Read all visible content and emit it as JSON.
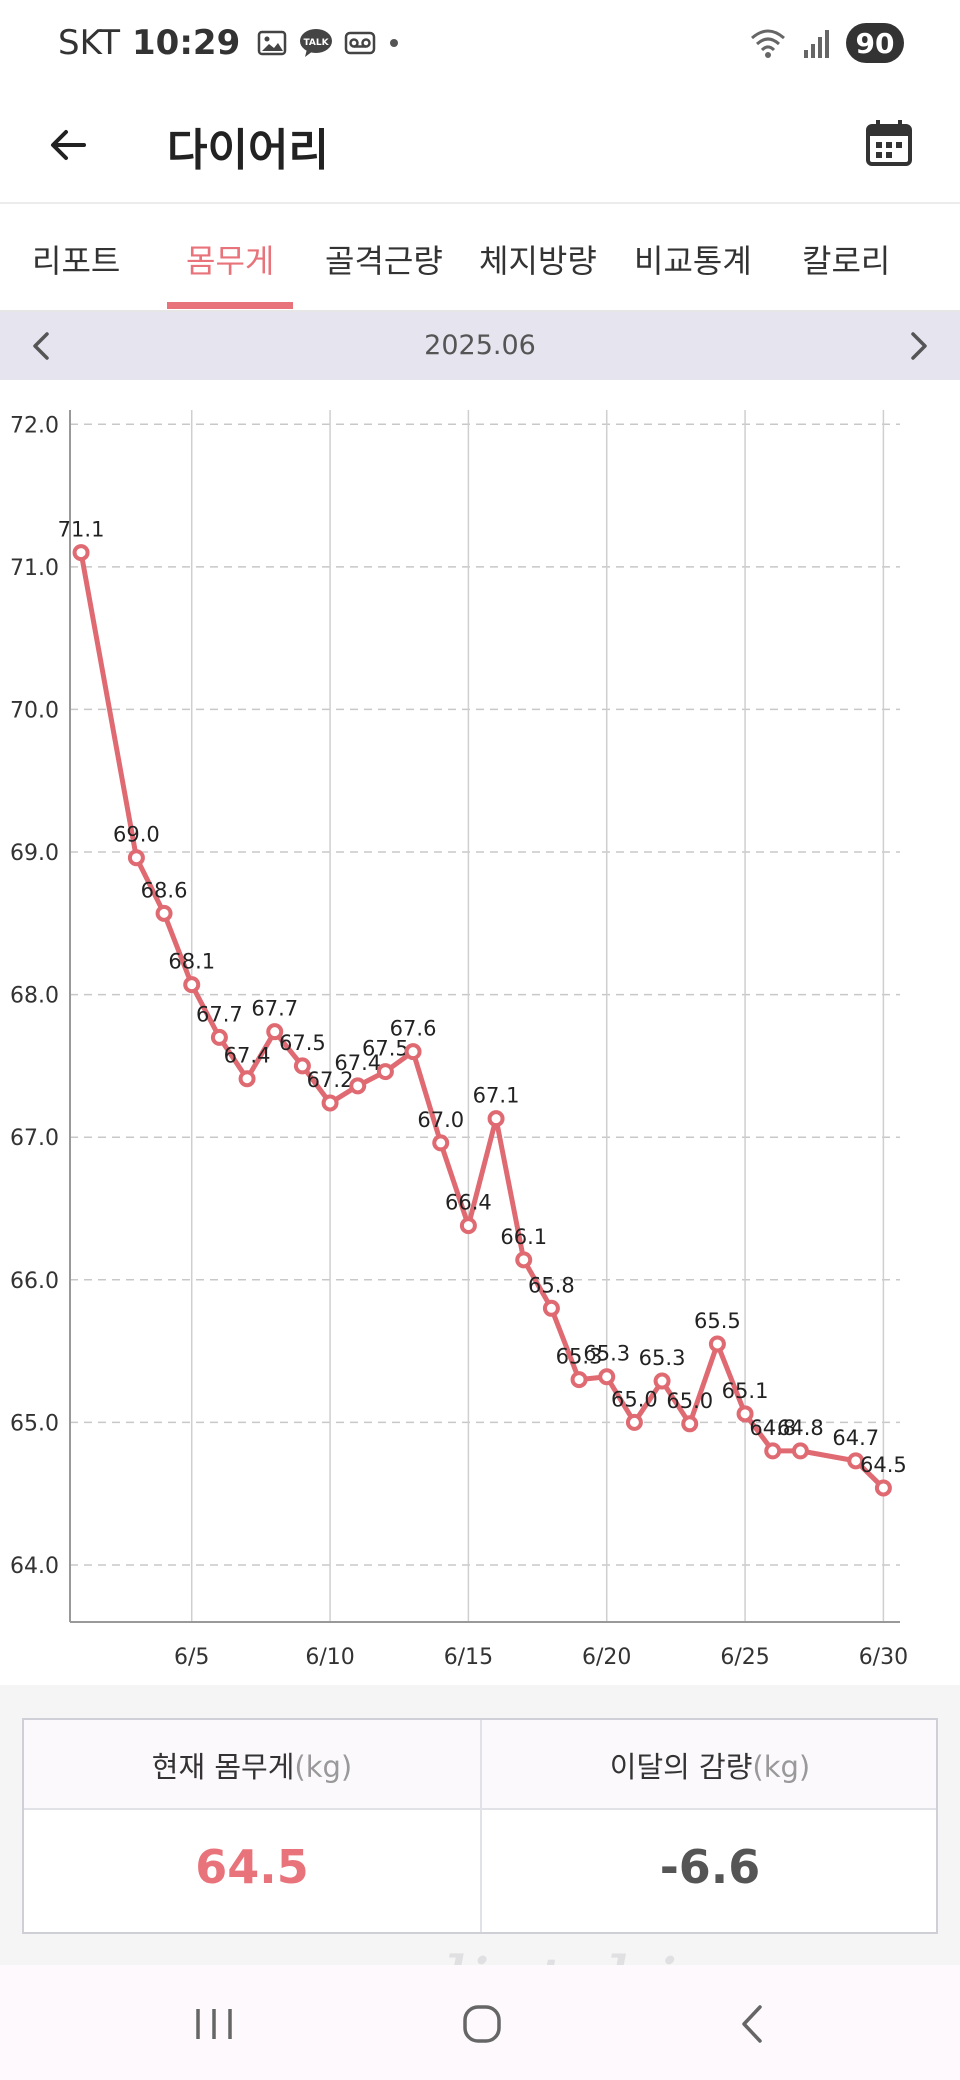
{
  "status_bar": {
    "carrier": "SKT",
    "time": "10:29",
    "battery": "90"
  },
  "app_bar": {
    "title": "다이어리"
  },
  "tabs": [
    {
      "label": "리포트",
      "active": false
    },
    {
      "label": "몸무게",
      "active": true
    },
    {
      "label": "골격근량",
      "active": false
    },
    {
      "label": "체지방량",
      "active": false
    },
    {
      "label": "비교통계",
      "active": false
    },
    {
      "label": "칼로리",
      "active": false
    }
  ],
  "month_nav": {
    "label": "2025.06"
  },
  "chart_data": {
    "type": "line",
    "ylim": [
      63.6,
      72.1
    ],
    "xlim": [
      0.6,
      30.6
    ],
    "y_ticks": [
      "64.0",
      "65.0",
      "66.0",
      "67.0",
      "68.0",
      "69.0",
      "70.0",
      "71.0",
      "72.0"
    ],
    "x_ticks": [
      {
        "day": 5,
        "label": "6/5"
      },
      {
        "day": 10,
        "label": "6/10"
      },
      {
        "day": 15,
        "label": "6/15"
      },
      {
        "day": 20,
        "label": "6/20"
      },
      {
        "day": 25,
        "label": "6/25"
      },
      {
        "day": 30,
        "label": "6/30"
      }
    ],
    "grid": true,
    "series": [
      {
        "color": "#e06a72",
        "points": [
          {
            "x": 1,
            "y": 71.1,
            "label": "71.1"
          },
          {
            "x": 3,
            "y": 68.96,
            "label": "69.0"
          },
          {
            "x": 4,
            "y": 68.57,
            "label": "68.6"
          },
          {
            "x": 5,
            "y": 68.07,
            "label": "68.1"
          },
          {
            "x": 6,
            "y": 67.7,
            "label": "67.7"
          },
          {
            "x": 7,
            "y": 67.41,
            "label": "67.4"
          },
          {
            "x": 8,
            "y": 67.74,
            "label": "67.7"
          },
          {
            "x": 9,
            "y": 67.5,
            "label": "67.5"
          },
          {
            "x": 10,
            "y": 67.24,
            "label": "67.2"
          },
          {
            "x": 11,
            "y": 67.36,
            "label": "67.4"
          },
          {
            "x": 12,
            "y": 67.46,
            "label": "67.5"
          },
          {
            "x": 13,
            "y": 67.6,
            "label": "67.6"
          },
          {
            "x": 14,
            "y": 66.96,
            "label": "67.0"
          },
          {
            "x": 15,
            "y": 66.38,
            "label": "66.4"
          },
          {
            "x": 16,
            "y": 67.13,
            "label": "67.1"
          },
          {
            "x": 17,
            "y": 66.14,
            "label": "66.1"
          },
          {
            "x": 18,
            "y": 65.8,
            "label": "65.8"
          },
          {
            "x": 19,
            "y": 65.3,
            "label": "65.3"
          },
          {
            "x": 20,
            "y": 65.32,
            "label": "65.3"
          },
          {
            "x": 21,
            "y": 65.0,
            "label": "65.0"
          },
          {
            "x": 22,
            "y": 65.29,
            "label": "65.3"
          },
          {
            "x": 23,
            "y": 64.99,
            "label": "65.0"
          },
          {
            "x": 24,
            "y": 65.55,
            "label": "65.5"
          },
          {
            "x": 25,
            "y": 65.06,
            "label": "65.1"
          },
          {
            "x": 26,
            "y": 64.8,
            "label": "64.8"
          },
          {
            "x": 27,
            "y": 64.8,
            "label": "64.8"
          },
          {
            "x": 29,
            "y": 64.73,
            "label": "64.7"
          },
          {
            "x": 30,
            "y": 64.54,
            "label": "64.5"
          }
        ]
      }
    ]
  },
  "summary": {
    "current_label": "현재 몸무게",
    "current_unit": "(kg)",
    "current_value": "64.5",
    "change_label": "이달의 감량",
    "change_unit": "(kg)",
    "change_value": "-6.6"
  },
  "watermark": "dietshin.com"
}
